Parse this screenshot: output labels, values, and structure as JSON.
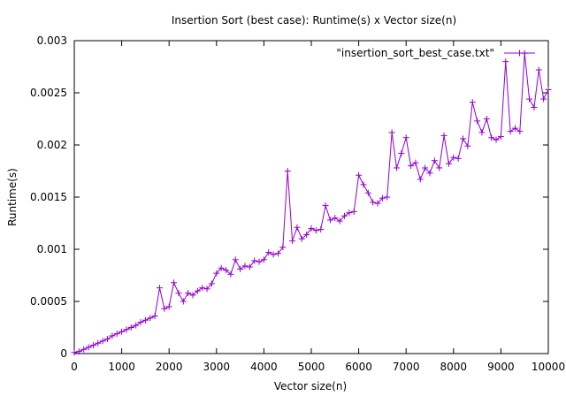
{
  "chart_data": {
    "type": "line",
    "title": "Insertion Sort (best case): Runtime(s) x Vector size(n)",
    "xlabel": "Vector size(n)",
    "ylabel": "Runtime(s)",
    "xlim": [
      0,
      10000
    ],
    "ylim": [
      0,
      0.003
    ],
    "x_ticks": [
      "0",
      "1000",
      "2000",
      "3000",
      "4000",
      "5000",
      "6000",
      "7000",
      "8000",
      "9000",
      "10000"
    ],
    "y_ticks": [
      "0",
      "0.0005",
      "0.001",
      "0.0015",
      "0.002",
      "0.0025",
      "0.003"
    ],
    "x_tick_values": [
      0,
      1000,
      2000,
      3000,
      4000,
      5000,
      6000,
      7000,
      8000,
      9000,
      10000
    ],
    "y_tick_values": [
      0,
      0.0005,
      0.001,
      0.0015,
      0.002,
      0.0025,
      0.003
    ],
    "grid": false,
    "legend_position": "top-right",
    "series_color": "#9400d3",
    "series": [
      {
        "name": "\"insertion_sort_best_case.txt\"",
        "x": [
          0,
          100,
          200,
          300,
          400,
          500,
          600,
          700,
          800,
          900,
          1000,
          1100,
          1200,
          1300,
          1400,
          1500,
          1600,
          1700,
          1800,
          1900,
          2000,
          2100,
          2200,
          2300,
          2400,
          2500,
          2600,
          2700,
          2800,
          2900,
          3000,
          3100,
          3200,
          3300,
          3400,
          3500,
          3600,
          3700,
          3800,
          3900,
          4000,
          4100,
          4200,
          4300,
          4400,
          4500,
          4600,
          4700,
          4800,
          4900,
          5000,
          5100,
          5200,
          5300,
          5400,
          5500,
          5600,
          5700,
          5800,
          5900,
          6000,
          6100,
          6200,
          6300,
          6400,
          6500,
          6600,
          6700,
          6800,
          6900,
          7000,
          7100,
          7200,
          7300,
          7400,
          7500,
          7600,
          7700,
          7800,
          7900,
          8000,
          8100,
          8200,
          8300,
          8400,
          8500,
          8600,
          8700,
          8800,
          8900,
          9000,
          9100,
          9200,
          9300,
          9400,
          9500,
          9600,
          9700,
          9800,
          9900,
          10000
        ],
        "y": [
          1e-05,
          2e-05,
          4e-05,
          6e-05,
          8e-05,
          0.0001,
          0.00012,
          0.00014,
          0.00017,
          0.00019,
          0.00021,
          0.00023,
          0.00025,
          0.00027,
          0.0003,
          0.00032,
          0.00034,
          0.00036,
          0.00063,
          0.00043,
          0.00045,
          0.00068,
          0.00058,
          0.0005,
          0.00058,
          0.00056,
          0.0006,
          0.00063,
          0.00062,
          0.00067,
          0.00077,
          0.00082,
          0.0008,
          0.00076,
          0.0009,
          0.00081,
          0.00084,
          0.00083,
          0.00089,
          0.00088,
          0.0009,
          0.00097,
          0.00095,
          0.00096,
          0.00102,
          0.00175,
          0.00108,
          0.00121,
          0.0011,
          0.00114,
          0.0012,
          0.00118,
          0.00119,
          0.00142,
          0.00128,
          0.0013,
          0.00127,
          0.00132,
          0.00135,
          0.00136,
          0.00171,
          0.00162,
          0.00154,
          0.00145,
          0.00144,
          0.00149,
          0.0015,
          0.00212,
          0.00178,
          0.00192,
          0.00207,
          0.0018,
          0.00183,
          0.00167,
          0.00178,
          0.00173,
          0.00185,
          0.00178,
          0.00209,
          0.00182,
          0.00188,
          0.00187,
          0.00206,
          0.00199,
          0.00241,
          0.00223,
          0.00212,
          0.00225,
          0.00207,
          0.00205,
          0.00208,
          0.0028,
          0.00213,
          0.00216,
          0.00213,
          0.00288,
          0.00244,
          0.00236,
          0.00272,
          0.00244,
          0.00253
        ]
      }
    ]
  }
}
